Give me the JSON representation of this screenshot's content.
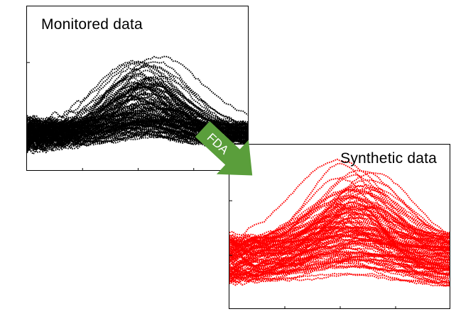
{
  "monitored": {
    "title": "Monitored data",
    "color": "#000000",
    "n_curves": 120,
    "seed": 7
  },
  "synthetic": {
    "title": "Synthetic data",
    "color": "#ff0000",
    "n_curves": 110,
    "seed": 23
  },
  "arrow": {
    "label": "FDA",
    "fill": "#5a9e3b",
    "text_color": "#ffffff"
  }
}
